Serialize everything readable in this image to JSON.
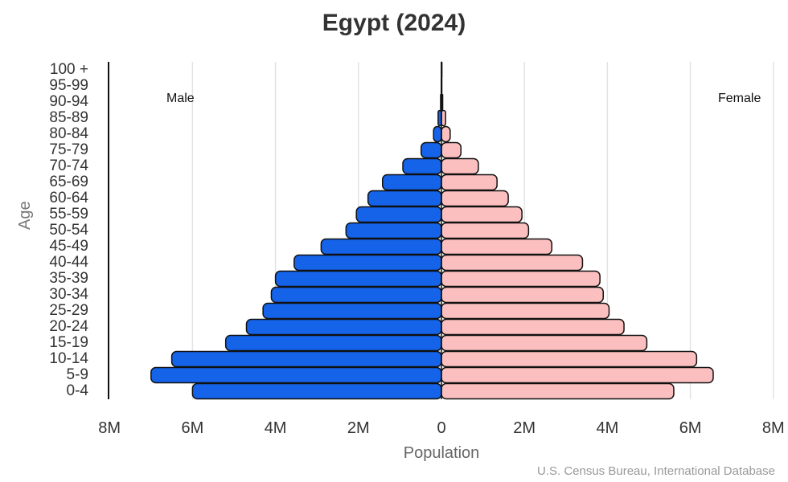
{
  "chart_data": {
    "type": "bar",
    "orientation": "horizontal-population-pyramid",
    "title": "Egypt (2024)",
    "xlabel": "Population",
    "ylabel": "Age",
    "source": "U.S. Census Bureau, International Database",
    "categories": [
      "0-4",
      "5-9",
      "10-14",
      "15-19",
      "20-24",
      "25-29",
      "30-34",
      "35-39",
      "40-44",
      "45-49",
      "50-54",
      "55-59",
      "60-64",
      "65-69",
      "70-74",
      "75-79",
      "80-84",
      "85-89",
      "90-94",
      "95-99",
      "100 +"
    ],
    "series": [
      {
        "name": "Male",
        "color": "#1463e8",
        "values": [
          6.0,
          7.0,
          6.5,
          5.2,
          4.7,
          4.3,
          4.1,
          4.0,
          3.55,
          2.9,
          2.3,
          2.05,
          1.77,
          1.42,
          0.93,
          0.49,
          0.19,
          0.08,
          0.02,
          0.005,
          0.001
        ]
      },
      {
        "name": "Female",
        "color": "#fbbfbf",
        "values": [
          5.6,
          6.55,
          6.15,
          4.95,
          4.4,
          4.04,
          3.9,
          3.82,
          3.4,
          2.66,
          2.1,
          1.94,
          1.61,
          1.34,
          0.89,
          0.47,
          0.21,
          0.1,
          0.03,
          0.008,
          0.001
        ]
      }
    ],
    "units": "millions",
    "xlim": [
      -8,
      8
    ],
    "xticks": [
      "8M",
      "6M",
      "4M",
      "2M",
      "0",
      "2M",
      "4M",
      "6M",
      "8M"
    ],
    "grid": true,
    "legend": {
      "left_label": "Male",
      "right_label": "Female",
      "position": "top-inside"
    }
  }
}
